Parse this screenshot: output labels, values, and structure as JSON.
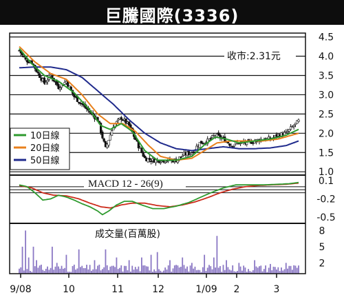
{
  "header": {
    "title": "巨騰國際(3336)"
  },
  "chart_data": [
    {
      "type": "candlestick+line",
      "panel": "price",
      "annotation": "收市:2.31元",
      "y_ticks": [
        "4.5",
        "4.0",
        "3.5",
        "3.0",
        "2.5",
        "2.0",
        "1.5",
        "1.0"
      ],
      "ylim": [
        0.95,
        4.6
      ],
      "x_ticks": [
        "9/08",
        "10",
        "11",
        "12",
        "1/09",
        "2",
        "3"
      ],
      "legend": {
        "position": "bottom-left",
        "entries": [
          "10日線",
          "20日線",
          "50日線"
        ]
      },
      "colors": {
        "ma10": "#2e9a2e",
        "ma20": "#e8801c",
        "ma50": "#1f2a8c",
        "candle": "#111111",
        "grid": "#111111"
      },
      "close_anchors": [
        [
          0,
          4.15
        ],
        [
          4,
          3.9
        ],
        [
          8,
          3.85
        ],
        [
          12,
          3.55
        ],
        [
          16,
          3.3
        ],
        [
          20,
          3.5
        ],
        [
          25,
          3.2
        ],
        [
          30,
          3.35
        ],
        [
          35,
          2.95
        ],
        [
          40,
          2.75
        ],
        [
          45,
          2.55
        ],
        [
          50,
          2.35
        ],
        [
          55,
          1.6
        ],
        [
          60,
          2.2
        ],
        [
          65,
          2.4
        ],
        [
          70,
          2.2
        ],
        [
          75,
          1.75
        ],
        [
          80,
          1.35
        ],
        [
          85,
          1.3
        ],
        [
          90,
          1.3
        ],
        [
          95,
          1.3
        ],
        [
          100,
          1.3
        ],
        [
          105,
          1.45
        ],
        [
          110,
          1.5
        ],
        [
          115,
          1.75
        ],
        [
          120,
          1.8
        ],
        [
          125,
          1.95
        ],
        [
          130,
          1.85
        ],
        [
          135,
          1.7
        ],
        [
          140,
          1.75
        ],
        [
          145,
          1.75
        ],
        [
          150,
          1.8
        ],
        [
          155,
          1.85
        ],
        [
          160,
          1.85
        ],
        [
          165,
          1.95
        ],
        [
          170,
          2.0
        ],
        [
          175,
          2.2
        ],
        [
          178,
          2.31
        ]
      ],
      "ma10_anchors": [
        [
          0,
          4.2
        ],
        [
          8,
          3.8
        ],
        [
          16,
          3.5
        ],
        [
          25,
          3.35
        ],
        [
          35,
          3.05
        ],
        [
          45,
          2.6
        ],
        [
          52,
          2.2
        ],
        [
          58,
          2.1
        ],
        [
          65,
          2.25
        ],
        [
          72,
          2.05
        ],
        [
          80,
          1.55
        ],
        [
          88,
          1.3
        ],
        [
          100,
          1.3
        ],
        [
          110,
          1.4
        ],
        [
          118,
          1.7
        ],
        [
          125,
          1.9
        ],
        [
          132,
          1.85
        ],
        [
          140,
          1.75
        ],
        [
          150,
          1.8
        ],
        [
          160,
          1.85
        ],
        [
          170,
          1.95
        ],
        [
          178,
          2.1
        ]
      ],
      "ma20_anchors": [
        [
          0,
          4.25
        ],
        [
          10,
          3.85
        ],
        [
          20,
          3.55
        ],
        [
          30,
          3.4
        ],
        [
          40,
          3.0
        ],
        [
          50,
          2.5
        ],
        [
          58,
          2.25
        ],
        [
          66,
          2.25
        ],
        [
          74,
          2.05
        ],
        [
          82,
          1.7
        ],
        [
          90,
          1.4
        ],
        [
          100,
          1.3
        ],
        [
          110,
          1.35
        ],
        [
          118,
          1.55
        ],
        [
          126,
          1.75
        ],
        [
          135,
          1.8
        ],
        [
          145,
          1.8
        ],
        [
          155,
          1.8
        ],
        [
          165,
          1.85
        ],
        [
          178,
          2.0
        ]
      ],
      "ma50_anchors": [
        [
          0,
          3.7
        ],
        [
          10,
          3.72
        ],
        [
          20,
          3.72
        ],
        [
          30,
          3.65
        ],
        [
          40,
          3.45
        ],
        [
          50,
          3.1
        ],
        [
          60,
          2.75
        ],
        [
          70,
          2.35
        ],
        [
          80,
          2.0
        ],
        [
          90,
          1.75
        ],
        [
          100,
          1.6
        ],
        [
          110,
          1.55
        ],
        [
          120,
          1.6
        ],
        [
          130,
          1.65
        ],
        [
          140,
          1.6
        ],
        [
          150,
          1.6
        ],
        [
          160,
          1.62
        ],
        [
          170,
          1.68
        ],
        [
          178,
          1.8
        ]
      ]
    },
    {
      "type": "line",
      "panel": "macd",
      "label": "MACD 12 - 26(9)",
      "y_ticks": [
        "0.1",
        "-0.2",
        "-0.5"
      ],
      "ylim": [
        -0.58,
        0.18
      ],
      "reference_lines": [
        0,
        -0.05,
        -0.1
      ],
      "colors": {
        "macd": "#2e9a2e",
        "signal": "#cc2a1a"
      },
      "macd_anchors": [
        [
          0,
          0.03
        ],
        [
          5,
          0.0
        ],
        [
          10,
          -0.1
        ],
        [
          15,
          -0.22
        ],
        [
          20,
          -0.2
        ],
        [
          25,
          -0.14
        ],
        [
          30,
          -0.17
        ],
        [
          35,
          -0.22
        ],
        [
          40,
          -0.28
        ],
        [
          45,
          -0.33
        ],
        [
          50,
          -0.4
        ],
        [
          53,
          -0.46
        ],
        [
          57,
          -0.4
        ],
        [
          62,
          -0.3
        ],
        [
          67,
          -0.24
        ],
        [
          72,
          -0.24
        ],
        [
          78,
          -0.3
        ],
        [
          85,
          -0.36
        ],
        [
          92,
          -0.36
        ],
        [
          100,
          -0.32
        ],
        [
          108,
          -0.26
        ],
        [
          115,
          -0.18
        ],
        [
          122,
          -0.1
        ],
        [
          130,
          -0.02
        ],
        [
          138,
          0.03
        ],
        [
          146,
          0.03
        ],
        [
          155,
          0.03
        ],
        [
          165,
          0.04
        ],
        [
          172,
          0.05
        ],
        [
          178,
          0.07
        ]
      ],
      "signal_anchors": [
        [
          0,
          0.02
        ],
        [
          8,
          -0.02
        ],
        [
          15,
          -0.1
        ],
        [
          22,
          -0.14
        ],
        [
          30,
          -0.15
        ],
        [
          38,
          -0.2
        ],
        [
          45,
          -0.27
        ],
        [
          52,
          -0.33
        ],
        [
          58,
          -0.35
        ],
        [
          65,
          -0.3
        ],
        [
          72,
          -0.27
        ],
        [
          80,
          -0.27
        ],
        [
          88,
          -0.31
        ],
        [
          96,
          -0.33
        ],
        [
          104,
          -0.3
        ],
        [
          112,
          -0.25
        ],
        [
          120,
          -0.18
        ],
        [
          128,
          -0.1
        ],
        [
          136,
          -0.04
        ],
        [
          144,
          0.0
        ],
        [
          152,
          0.02
        ],
        [
          160,
          0.03
        ],
        [
          170,
          0.04
        ],
        [
          178,
          0.06
        ]
      ]
    },
    {
      "type": "bar",
      "panel": "volume",
      "label": "成交量(百萬股)",
      "y_ticks": [
        "8",
        "5",
        "2"
      ],
      "ylim": [
        0,
        9.2
      ],
      "color": "#8a77c4",
      "spikes": [
        [
          2,
          5.0
        ],
        [
          4,
          8.0
        ],
        [
          6,
          3.0
        ],
        [
          9,
          5.0
        ],
        [
          11,
          2.5
        ],
        [
          21,
          5.0
        ],
        [
          24,
          2.0
        ],
        [
          30,
          3.5
        ],
        [
          38,
          4.5
        ],
        [
          48,
          2.5
        ],
        [
          55,
          4.5
        ],
        [
          62,
          3.0
        ],
        [
          70,
          2.5
        ],
        [
          78,
          3.0
        ],
        [
          84,
          3.5
        ],
        [
          88,
          4.0
        ],
        [
          96,
          2.5
        ],
        [
          104,
          3.0
        ],
        [
          110,
          2.0
        ],
        [
          118,
          3.5
        ],
        [
          124,
          3.0
        ],
        [
          126,
          7.0
        ],
        [
          132,
          2.5
        ],
        [
          140,
          2.0
        ],
        [
          150,
          2.5
        ],
        [
          160,
          1.8
        ],
        [
          170,
          2.0
        ]
      ]
    }
  ]
}
